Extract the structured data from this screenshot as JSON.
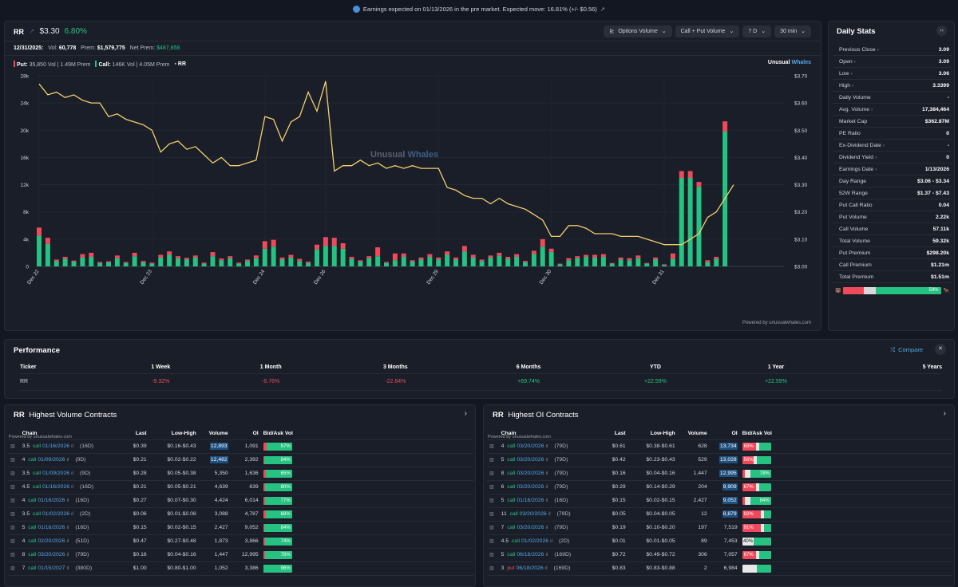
{
  "banner": {
    "text": "Earnings expected on 01/13/2026 in the pre market. Expected move: 16.81% (+/- $0.56)",
    "ext": "↗"
  },
  "header": {
    "ticker": "RR",
    "price": "$3.30",
    "change": "6.80%",
    "controls": [
      {
        "label": "Options Volume",
        "icon": "chart-icon"
      },
      {
        "label": "Call + Put Volume"
      },
      {
        "label": "7 D"
      },
      {
        "label": "30 min"
      }
    ]
  },
  "subline": {
    "date": "12/31/2025:",
    "vol_label": "Vol:",
    "vol": "60,778",
    "prem_label": "Prem:",
    "prem": "$1,579,775",
    "net_label": "Net Prem:",
    "net": "$487,858"
  },
  "legend": {
    "put_label": "Put:",
    "put_text": "35,850 Vol | 1.49M Prem",
    "call_label": "Call:",
    "call_text": "146K Vol | 4.05M Prem",
    "ticker": "RR"
  },
  "brand": {
    "unusual": "Unusual",
    "whales": "Whales",
    "powered": "Powered by unusualwhales.com"
  },
  "colors": {
    "call": "#26c281",
    "put": "#f04a5a",
    "price_line": "#f3cf6b",
    "accent": "#55a7e8"
  },
  "chart_data": {
    "type": "bar+line",
    "y_volume_ticks": [
      "28k",
      "24k",
      "20k",
      "16k",
      "12k",
      "8k",
      "4k",
      "0"
    ],
    "y_price_ticks": [
      "$3.70",
      "$3.60",
      "$3.50",
      "$3.40",
      "$3.30",
      "$3.20",
      "$3.10",
      "$3.00"
    ],
    "y_volume_range": [
      0,
      28000
    ],
    "y_price_range": [
      3.0,
      3.7
    ],
    "x_labels": [
      {
        "label": "Dec 22",
        "i": 0
      },
      {
        "label": "Dec 23",
        "i": 13
      },
      {
        "label": "Dec 24",
        "i": 26
      },
      {
        "label": "Dec 26",
        "i": 33
      },
      {
        "label": "Dec 29",
        "i": 46
      },
      {
        "label": "Dec 30",
        "i": 59
      },
      {
        "label": "Dec 31",
        "i": 72
      }
    ],
    "call_volume": [
      4500,
      3300,
      800,
      1100,
      700,
      1300,
      1400,
      500,
      600,
      1200,
      500,
      1500,
      600,
      400,
      1300,
      1700,
      1200,
      1000,
      1300,
      400,
      1500,
      900,
      1200,
      400,
      800,
      1200,
      2600,
      2900,
      1000,
      1300,
      800,
      500,
      2500,
      3000,
      3000,
      2600,
      1100,
      700,
      1200,
      1500,
      500,
      900,
      1400,
      700,
      1000,
      1400,
      1000,
      1700,
      1000,
      2200,
      1300,
      800,
      1300,
      1600,
      1100,
      1400,
      600,
      1800,
      2900,
      2100,
      300,
      900,
      1200,
      1400,
      1300,
      1400,
      400,
      1000,
      900,
      1200,
      400,
      1000,
      200,
      1100,
      13000,
      13000,
      11700,
      600,
      1100,
      19800,
      0
    ],
    "put_volume": [
      1200,
      900,
      200,
      300,
      150,
      500,
      600,
      150,
      150,
      400,
      150,
      500,
      200,
      150,
      400,
      500,
      300,
      250,
      300,
      150,
      600,
      250,
      300,
      150,
      200,
      400,
      1100,
      1000,
      300,
      400,
      300,
      200,
      700,
      1300,
      1200,
      800,
      300,
      200,
      300,
      1300,
      150,
      1000,
      500,
      200,
      300,
      400,
      300,
      500,
      300,
      800,
      400,
      200,
      300,
      400,
      300,
      400,
      200,
      500,
      1100,
      500,
      100,
      300,
      300,
      300,
      400,
      400,
      100,
      300,
      300,
      400,
      100,
      300,
      100,
      800,
      1000,
      1000,
      700,
      300,
      300,
      1500,
      0
    ],
    "price": [
      3.67,
      3.63,
      3.64,
      3.62,
      3.63,
      3.61,
      3.6,
      3.6,
      3.55,
      3.56,
      3.54,
      3.53,
      3.52,
      3.5,
      3.42,
      3.45,
      3.46,
      3.43,
      3.44,
      3.41,
      3.38,
      3.4,
      3.37,
      3.37,
      3.38,
      3.39,
      3.55,
      3.54,
      3.46,
      3.53,
      3.55,
      3.64,
      3.57,
      3.68,
      3.35,
      3.37,
      3.37,
      3.39,
      3.37,
      3.38,
      3.36,
      3.37,
      3.36,
      3.37,
      3.36,
      3.36,
      3.36,
      3.29,
      3.28,
      3.26,
      3.25,
      3.25,
      3.23,
      3.25,
      3.23,
      3.22,
      3.21,
      3.19,
      3.17,
      3.11,
      3.11,
      3.15,
      3.15,
      3.14,
      3.12,
      3.12,
      3.12,
      3.11,
      3.11,
      3.11,
      3.1,
      3.09,
      3.08,
      3.08,
      3.08,
      3.1,
      3.12,
      3.18,
      3.2,
      3.25,
      3.3
    ]
  },
  "stats": {
    "title": "Daily Stats",
    "collapse": "›‹",
    "rows": [
      {
        "label": "Previous Close",
        "arrow": true,
        "value": "3.09"
      },
      {
        "label": "Open",
        "arrow": true,
        "value": "3.09"
      },
      {
        "label": "Low",
        "arrow": true,
        "value": "3.06"
      },
      {
        "label": "High",
        "arrow": true,
        "value": "3.3399"
      },
      {
        "label": "Daily Volume",
        "value": "-"
      },
      {
        "label": "Avg. Volume",
        "arrow": true,
        "value": "17,384,464"
      },
      {
        "label": "Market Cap",
        "value": "$362.87M"
      },
      {
        "label": "PE Ratio",
        "value": "0"
      },
      {
        "label": "Ex-Dividend Date",
        "arrow": true,
        "value": "-"
      },
      {
        "label": "Dividend Yield",
        "arrow": true,
        "value": "0"
      },
      {
        "label": "Earnings Date",
        "arrow": true,
        "value": "1/13/2026"
      },
      {
        "label": "Day Range",
        "value": "$3.06 - $3.34"
      },
      {
        "label": "52W Range",
        "value": "$1.37 - $7.43"
      },
      {
        "label": "Put Call Ratio",
        "value": "0.04"
      },
      {
        "label": "Put Volume",
        "value": "2.22k"
      },
      {
        "label": "Call Volume",
        "value": "57.11k"
      },
      {
        "label": "Total Volume",
        "value": "59.32k"
      },
      {
        "label": "Put Premium",
        "value": "$298.20k"
      },
      {
        "label": "Call Premium",
        "value": "$1.21m"
      },
      {
        "label": "Total Premium",
        "value": "$1.51m"
      }
    ],
    "ratio_pct": "59%",
    "bear": "🐻",
    "bull": "🐂"
  },
  "performance": {
    "title": "Performance",
    "compare": "Compare",
    "headers": [
      "Ticker",
      "1 Week",
      "1 Month",
      "3 Months",
      "6 Months",
      "YTD",
      "1 Year",
      "5 Years"
    ],
    "row": [
      {
        "v": "RR",
        "c": ""
      },
      {
        "v": "-9.32%",
        "c": "red"
      },
      {
        "v": "-6.76%",
        "c": "red"
      },
      {
        "v": "-22.84%",
        "c": "red"
      },
      {
        "v": "+69.74%",
        "c": "green"
      },
      {
        "v": "+22.59%",
        "c": "green"
      },
      {
        "v": "+22.59%",
        "c": "green"
      },
      {
        "v": "",
        "c": ""
      }
    ]
  },
  "tables": {
    "headers": [
      "Chain",
      "Last",
      "Low-High",
      "Volume",
      "OI",
      "Bid/Ask Vol"
    ],
    "powered": "Powered by unusualwhales.com",
    "volume": {
      "ticker": "RR",
      "title": "Highest Volume Contracts",
      "rows": [
        {
          "strike": "3.5",
          "type": "call",
          "date": "01/16/2026",
          "dte": "(16D)",
          "last": "$0.39",
          "lh": "$0.16-$0.43",
          "vol": "12,893",
          "oi": "1,091",
          "ask": 57,
          "pct": "57%",
          "hl": true
        },
        {
          "strike": "4",
          "type": "call",
          "date": "01/09/2026",
          "dte": "(9D)",
          "last": "$0.21",
          "lh": "$0.02-$0.22",
          "vol": "12,482",
          "oi": "2,392",
          "ask": 84,
          "pct": "84%",
          "hl": true
        },
        {
          "strike": "3.5",
          "type": "call",
          "date": "01/09/2026",
          "dte": "(9D)",
          "last": "$0.28",
          "lh": "$0.05-$0.38",
          "vol": "5,350",
          "oi": "1,636",
          "ask": 65,
          "pct": "65%",
          "hl": false
        },
        {
          "strike": "4.5",
          "type": "call",
          "date": "01/16/2026",
          "dte": "(16D)",
          "last": "$0.21",
          "lh": "$0.05-$0.21",
          "vol": "4,639",
          "oi": "639",
          "ask": 80,
          "pct": "80%",
          "hl": false
        },
        {
          "strike": "4",
          "type": "call",
          "date": "01/16/2026",
          "dte": "(16D)",
          "last": "$0.27",
          "lh": "$0.07-$0.30",
          "vol": "4,424",
          "oi": "6,014",
          "ask": 77,
          "pct": "77%",
          "hl": false
        },
        {
          "strike": "3.5",
          "type": "call",
          "date": "01/02/2026",
          "dte": "(2D)",
          "last": "$0.06",
          "lh": "$0.01-$0.08",
          "vol": "3,088",
          "oi": "4,787",
          "ask": 68,
          "pct": "68%",
          "hl": false
        },
        {
          "strike": "5",
          "type": "call",
          "date": "01/16/2026",
          "dte": "(16D)",
          "last": "$0.15",
          "lh": "$0.02-$0.15",
          "vol": "2,427",
          "oi": "9,052",
          "ask": 84,
          "pct": "84%",
          "hl": false
        },
        {
          "strike": "4",
          "type": "call",
          "date": "02/20/2026",
          "dte": "(51D)",
          "last": "$0.47",
          "lh": "$0.27-$0.48",
          "vol": "1,873",
          "oi": "3,866",
          "ask": 74,
          "pct": "74%",
          "hl": false
        },
        {
          "strike": "8",
          "type": "call",
          "date": "03/20/2026",
          "dte": "(79D)",
          "last": "$0.16",
          "lh": "$0.04-$0.16",
          "vol": "1,447",
          "oi": "12,995",
          "ask": 78,
          "pct": "78%",
          "hl": false
        },
        {
          "strike": "7",
          "type": "call",
          "date": "01/15/2027",
          "dte": "(380D)",
          "last": "$1.00",
          "lh": "$0.80-$1.00",
          "vol": "1,052",
          "oi": "3,386",
          "ask": 96,
          "pct": "96%",
          "hl": false
        }
      ]
    },
    "oi": {
      "ticker": "RR",
      "title": "Highest OI Contracts",
      "rows": [
        {
          "strike": "4",
          "type": "call",
          "date": "03/20/2026",
          "dte": "(79D)",
          "last": "$0.61",
          "lh": "$0.38-$0.61",
          "vol": "628",
          "oi": "13,734",
          "bid": 69,
          "pct": "69%"
        },
        {
          "strike": "5",
          "type": "call",
          "date": "03/20/2026",
          "dte": "(79D)",
          "last": "$0.42",
          "lh": "$0.23-$0.43",
          "vol": "529",
          "oi": "13,028",
          "bid": 56,
          "pct": "56%"
        },
        {
          "strike": "8",
          "type": "call",
          "date": "03/20/2026",
          "dte": "(79D)",
          "last": "$0.16",
          "lh": "$0.04-$0.16",
          "vol": "1,447",
          "oi": "12,995",
          "bid": 22,
          "pct": "78%",
          "side": "ask"
        },
        {
          "strike": "6",
          "type": "call",
          "date": "03/20/2026",
          "dte": "(79D)",
          "last": "$0.29",
          "lh": "$0.14-$0.29",
          "vol": "204",
          "oi": "9,909",
          "bid": 67,
          "pct": "67%"
        },
        {
          "strike": "5",
          "type": "call",
          "date": "01/16/2026",
          "dte": "(16D)",
          "last": "$0.15",
          "lh": "$0.02-$0.15",
          "vol": "2,427",
          "oi": "9,052",
          "bid": 16,
          "pct": "84%",
          "side": "ask"
        },
        {
          "strike": "11",
          "type": "call",
          "date": "03/20/2026",
          "dte": "(79D)",
          "last": "$0.05",
          "lh": "$0.04-$0.05",
          "vol": "12",
          "oi": "8,879",
          "bid": 92,
          "pct": "92%"
        },
        {
          "strike": "7",
          "type": "call",
          "date": "03/20/2026",
          "dte": "(79D)",
          "last": "$0.19",
          "lh": "$0.10-$0.20",
          "vol": "197",
          "oi": "7,519",
          "bid": 91,
          "pct": "91%"
        },
        {
          "strike": "4.5",
          "type": "call",
          "date": "01/02/2026",
          "dte": "(2D)",
          "last": "$0.01",
          "lh": "$0.01-$0.05",
          "vol": "89",
          "oi": "7,453",
          "bid": 40,
          "pct": "40%",
          "neutral": true
        },
        {
          "strike": "5",
          "type": "call",
          "date": "06/18/2026",
          "dte": "(169D)",
          "last": "$0.72",
          "lh": "$0.49-$0.72",
          "vol": "306",
          "oi": "7,057",
          "bid": 67,
          "pct": "67%"
        },
        {
          "strike": "3",
          "type": "put",
          "date": "06/18/2026",
          "dte": "(169D)",
          "last": "$0.83",
          "lh": "$0.83-$0.88",
          "vol": "2",
          "oi": "6,984",
          "bid": 0,
          "pct": "",
          "neutral": true
        }
      ]
    }
  }
}
